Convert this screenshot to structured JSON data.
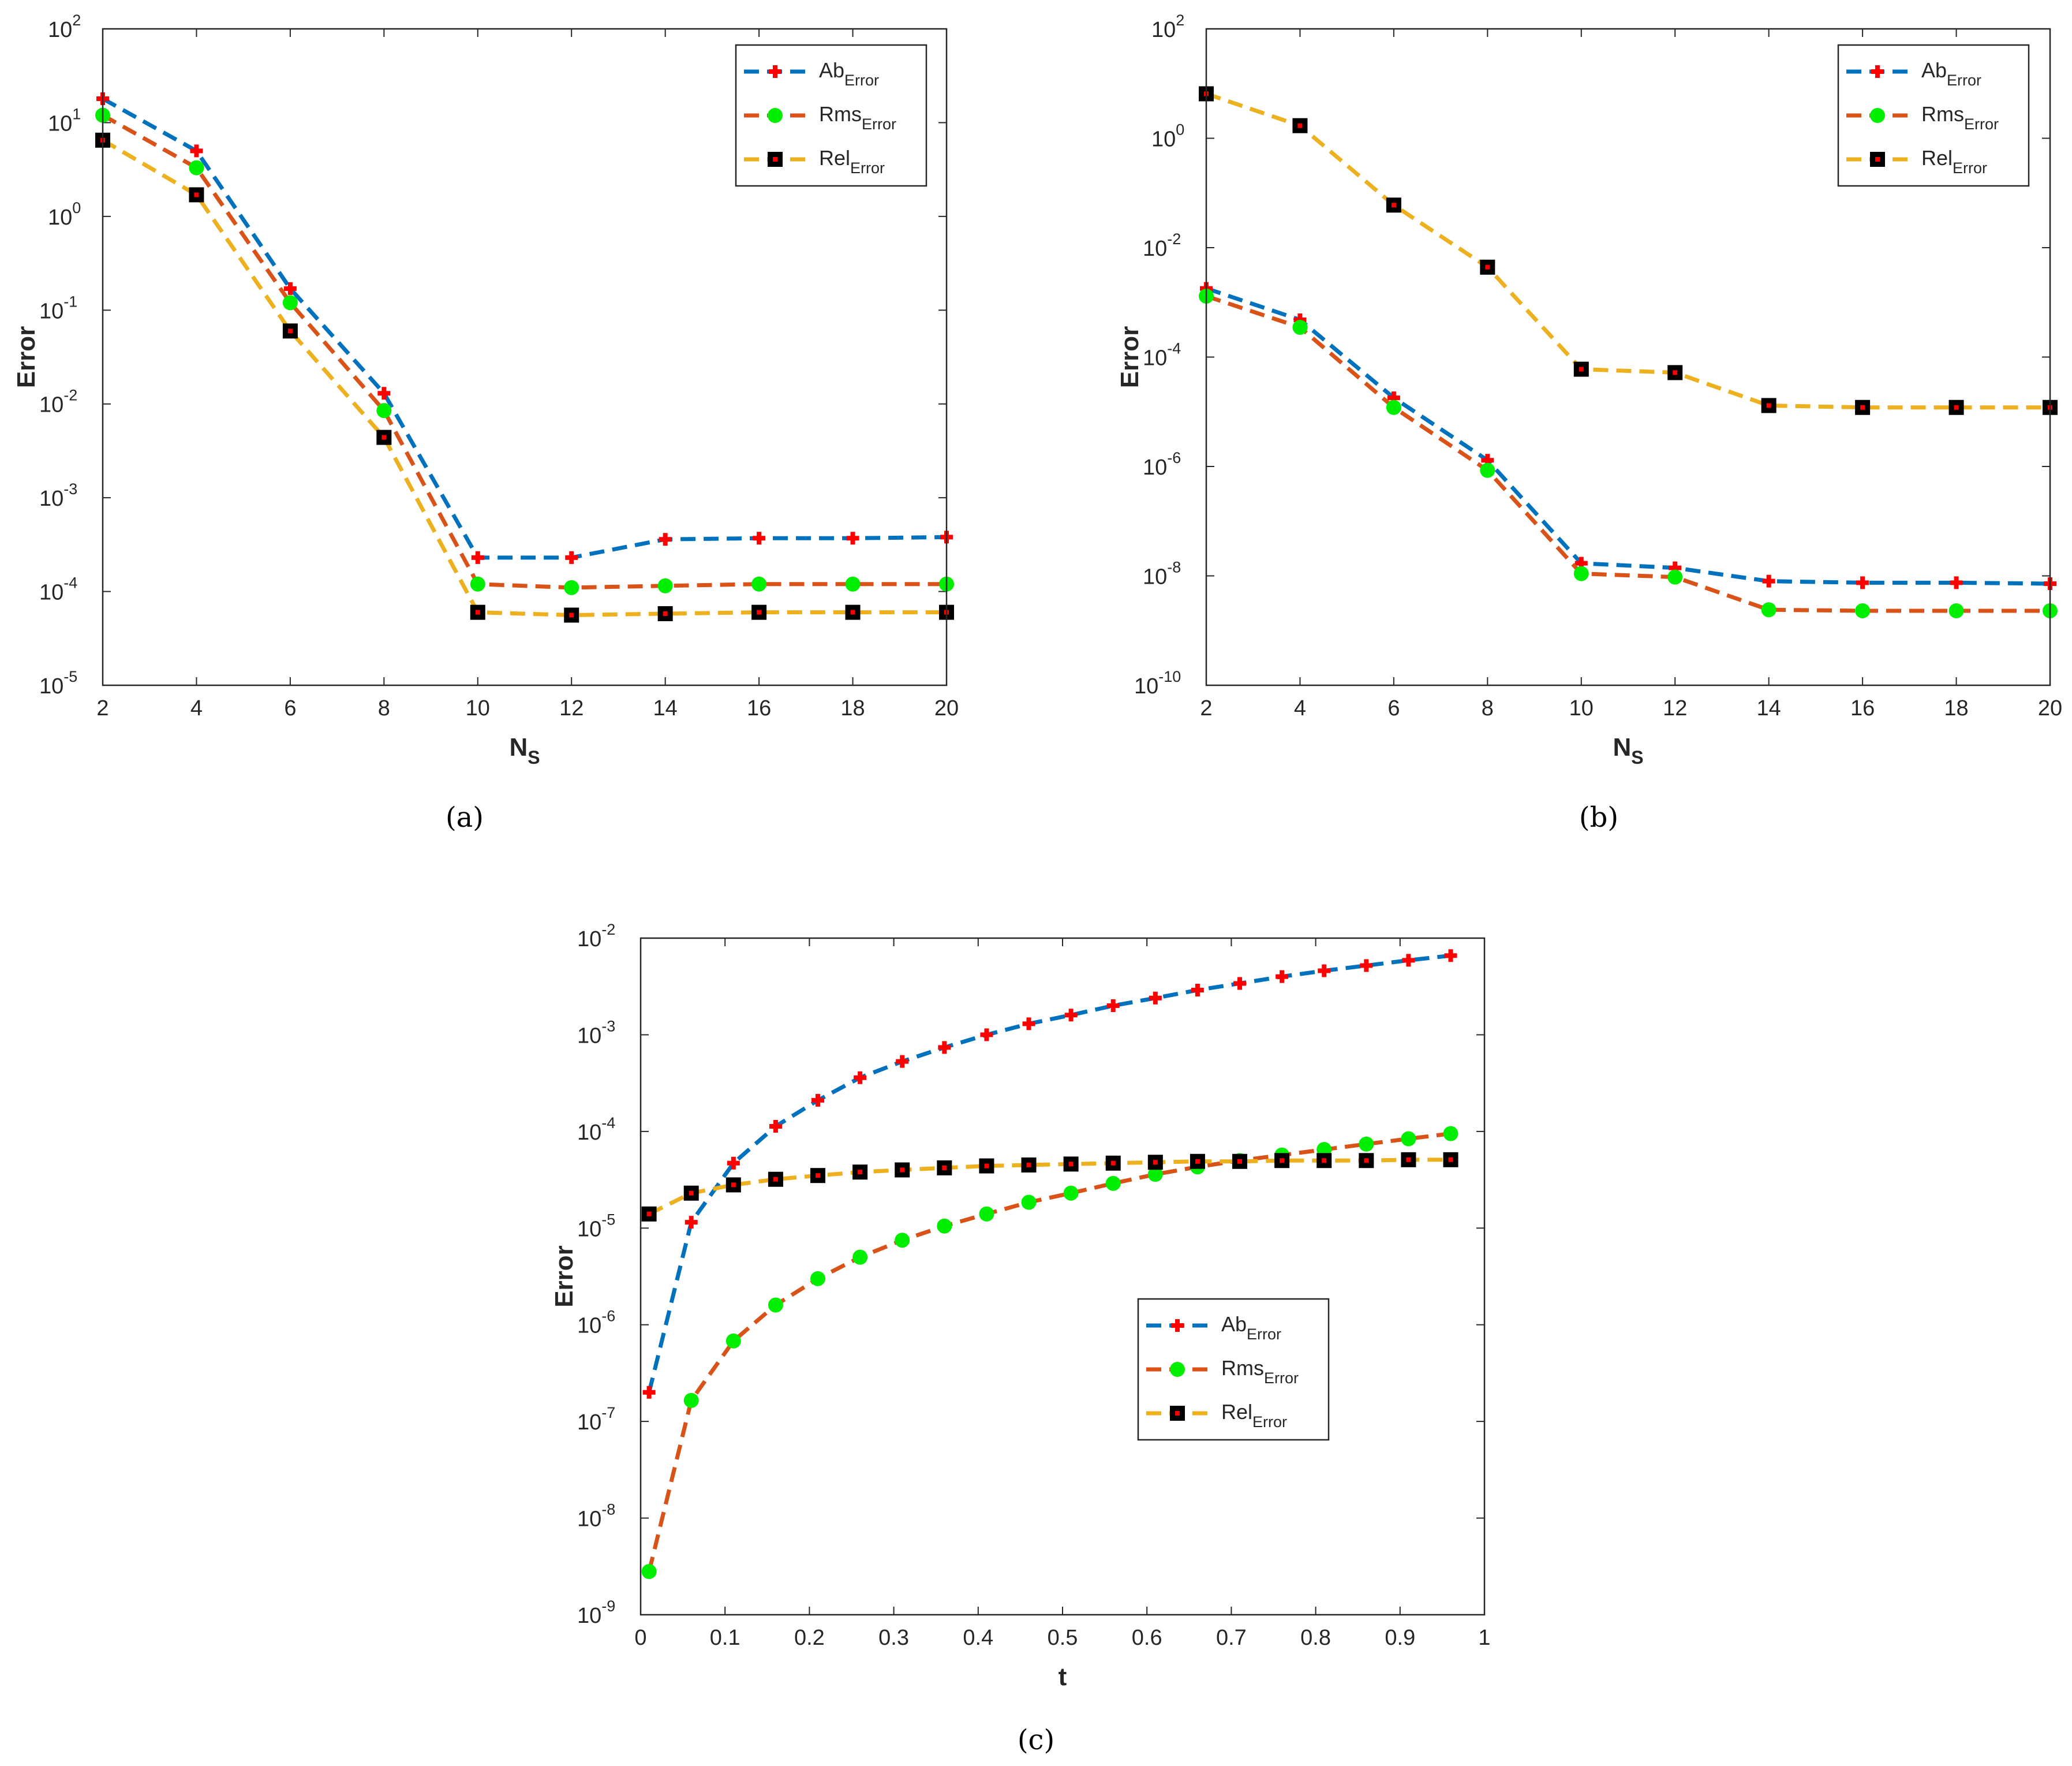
{
  "colors": {
    "ab_line": "#0072bd",
    "rms_line": "#d95319",
    "rel_line": "#edb120",
    "ab_marker": "#ff0000",
    "rms_marker": "#00ee00",
    "rel_marker_edge": "#000000",
    "rel_marker_center": "#ff0000"
  },
  "chart_data": [
    {
      "id": "a",
      "type": "line",
      "caption": "(a)",
      "ylabel": "Error",
      "xlabel": "N",
      "xlabel_sub": "S",
      "yscale": "log",
      "ylim_exp": [
        -5,
        2
      ],
      "xlim": [
        2,
        20
      ],
      "xticks": [
        2,
        4,
        6,
        8,
        10,
        12,
        14,
        16,
        18,
        20
      ],
      "yticks": [
        {
          "base": "10",
          "exp": "-5"
        },
        {
          "base": "10",
          "exp": "-4"
        },
        {
          "base": "10",
          "exp": "-3"
        },
        {
          "base": "10",
          "exp": "-2"
        },
        {
          "base": "10",
          "exp": "-1"
        },
        {
          "base": "10",
          "exp": "0"
        },
        {
          "base": "10",
          "exp": "1"
        },
        {
          "base": "10",
          "exp": "2"
        }
      ],
      "legend_position": "top-right",
      "x": [
        2,
        4,
        6,
        8,
        10,
        12,
        14,
        16,
        18,
        20
      ],
      "series": [
        {
          "name": "Ab",
          "name_sub": "Error",
          "key": "ab",
          "values": [
            18,
            5,
            0.17,
            0.013,
            0.00023,
            0.00023,
            0.00036,
            0.00037,
            0.00037,
            0.00038
          ]
        },
        {
          "name": "Rms",
          "name_sub": "Error",
          "key": "rms",
          "values": [
            12,
            3.3,
            0.12,
            0.0085,
            0.00012,
            0.00011,
            0.000115,
            0.00012,
            0.00012,
            0.00012
          ]
        },
        {
          "name": "Rel",
          "name_sub": "Error",
          "key": "rel",
          "values": [
            6.5,
            1.7,
            0.06,
            0.0044,
            6e-05,
            5.6e-05,
            5.8e-05,
            6e-05,
            6e-05,
            6e-05
          ]
        }
      ]
    },
    {
      "id": "b",
      "type": "line",
      "caption": "(b)",
      "ylabel": "Error",
      "xlabel": "N",
      "xlabel_sub": "S",
      "yscale": "log",
      "ylim_exp": [
        -10,
        2
      ],
      "xlim": [
        2,
        20
      ],
      "xticks": [
        2,
        4,
        6,
        8,
        10,
        12,
        14,
        16,
        18,
        20
      ],
      "yticks": [
        {
          "base": "10",
          "exp": "-10"
        },
        {
          "base": "10",
          "exp": "-8"
        },
        {
          "base": "10",
          "exp": "-6"
        },
        {
          "base": "10",
          "exp": "-4"
        },
        {
          "base": "10",
          "exp": "-2"
        },
        {
          "base": "10",
          "exp": "0"
        },
        {
          "base": "10",
          "exp": "2"
        }
      ],
      "legend_position": "top-right",
      "x": [
        2,
        4,
        6,
        8,
        10,
        12,
        14,
        16,
        18,
        20
      ],
      "series": [
        {
          "name": "Ab",
          "name_sub": "Error",
          "key": "ab",
          "values": [
            0.0018,
            0.00048,
            1.8e-05,
            1.3e-06,
            1.7e-08,
            1.4e-08,
            8e-09,
            7.5e-09,
            7.5e-09,
            7.2e-09
          ]
        },
        {
          "name": "Rms",
          "name_sub": "Error",
          "key": "rms",
          "values": [
            0.0013,
            0.00035,
            1.2e-05,
            8.5e-07,
            1.1e-08,
            9.5e-09,
            2.4e-09,
            2.3e-09,
            2.3e-09,
            2.3e-09
          ]
        },
        {
          "name": "Rel",
          "name_sub": "Error",
          "key": "rel",
          "values": [
            6.5,
            1.7,
            0.06,
            0.0044,
            6e-05,
            5.2e-05,
            1.3e-05,
            1.2e-05,
            1.2e-05,
            1.2e-05
          ]
        }
      ]
    },
    {
      "id": "c",
      "type": "line",
      "caption": "(c)",
      "ylabel": "Error",
      "xlabel": "t",
      "xlabel_sub": "",
      "yscale": "log",
      "ylim_exp": [
        -9,
        -2
      ],
      "xlim": [
        0,
        1
      ],
      "xticks": [
        "0",
        "0.1",
        "0.2",
        "0.3",
        "0.4",
        "0.5",
        "0.6",
        "0.7",
        "0.8",
        "0.9",
        "1"
      ],
      "yticks": [
        {
          "base": "10",
          "exp": "-9"
        },
        {
          "base": "10",
          "exp": "-8"
        },
        {
          "base": "10",
          "exp": "-7"
        },
        {
          "base": "10",
          "exp": "-6"
        },
        {
          "base": "10",
          "exp": "-5"
        },
        {
          "base": "10",
          "exp": "-4"
        },
        {
          "base": "10",
          "exp": "-3"
        },
        {
          "base": "10",
          "exp": "-2"
        }
      ],
      "legend_position": "center-right",
      "x": [
        0.01,
        0.06,
        0.11,
        0.16,
        0.21,
        0.26,
        0.31,
        0.36,
        0.41,
        0.46,
        0.51,
        0.56,
        0.61,
        0.66,
        0.71,
        0.76,
        0.81,
        0.86,
        0.91,
        0.96
      ],
      "series": [
        {
          "name": "Ab",
          "name_sub": "Error",
          "key": "ab",
          "values": [
            2e-07,
            1.15e-05,
            4.7e-05,
            0.000113,
            0.00021,
            0.00036,
            0.00053,
            0.00074,
            0.001,
            0.0013,
            0.0016,
            0.002,
            0.0024,
            0.0029,
            0.0034,
            0.004,
            0.0046,
            0.0052,
            0.0059,
            0.0066
          ]
        },
        {
          "name": "Rms",
          "name_sub": "Error",
          "key": "rms",
          "values": [
            2.8e-09,
            1.65e-07,
            6.8e-07,
            1.6e-06,
            3e-06,
            5e-06,
            7.5e-06,
            1.05e-05,
            1.4e-05,
            1.85e-05,
            2.3e-05,
            2.9e-05,
            3.6e-05,
            4.3e-05,
            5e-05,
            5.7e-05,
            6.5e-05,
            7.4e-05,
            8.4e-05,
            9.5e-05
          ]
        },
        {
          "name": "Rel",
          "name_sub": "Error",
          "key": "rel",
          "values": [
            1.4e-05,
            2.3e-05,
            2.8e-05,
            3.2e-05,
            3.5e-05,
            3.8e-05,
            4e-05,
            4.2e-05,
            4.4e-05,
            4.5e-05,
            4.6e-05,
            4.7e-05,
            4.8e-05,
            4.9e-05,
            4.9e-05,
            5e-05,
            5e-05,
            5e-05,
            5.1e-05,
            5.1e-05
          ]
        }
      ]
    }
  ]
}
